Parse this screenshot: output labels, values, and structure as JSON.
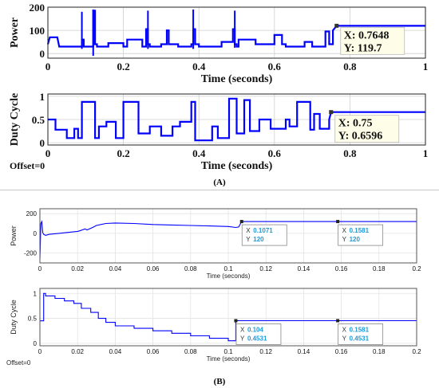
{
  "figure": {
    "panel_a_label": "(A)",
    "panel_b_label": "(B)"
  },
  "chart_data": [
    {
      "panel": "A",
      "type": "line",
      "ylabel": "Power",
      "xlabel": "Time (seconds)",
      "xlim": [
        0,
        1
      ],
      "ylim": [
        -20,
        200
      ],
      "xticks": [
        "0",
        "0.2",
        "0.4",
        "0.6",
        "0.8",
        "1"
      ],
      "yticks": [
        "0",
        "100",
        "200"
      ],
      "grid": true,
      "line_color": "#0000ff",
      "series": [
        {
          "x": [
            0,
            0.005,
            0.025,
            0.03,
            0.085,
            0.09,
            0.09,
            0.095,
            0.095,
            0.12,
            0.12,
            0.125,
            0.125,
            0.13,
            0.13,
            0.16,
            0.16,
            0.2,
            0.2,
            0.21,
            0.21,
            0.25,
            0.25,
            0.26,
            0.26,
            0.265,
            0.265,
            0.27,
            0.27,
            0.3,
            0.3,
            0.315,
            0.315,
            0.32,
            0.32,
            0.345,
            0.345,
            0.38,
            0.38,
            0.385,
            0.385,
            0.39,
            0.39,
            0.4,
            0.4,
            0.46,
            0.46,
            0.49,
            0.49,
            0.495,
            0.495,
            0.5,
            0.5,
            0.505,
            0.505,
            0.55,
            0.55,
            0.6,
            0.6,
            0.62,
            0.62,
            0.63,
            0.63,
            0.68,
            0.68,
            0.7,
            0.7,
            0.735,
            0.735,
            0.745,
            0.745,
            0.755,
            0.755,
            0.765,
            1.0
          ],
          "y": [
            40,
            70,
            70,
            30,
            30,
            30,
            60,
            60,
            30,
            30,
            185,
            185,
            40,
            40,
            30,
            30,
            45,
            45,
            30,
            30,
            60,
            60,
            30,
            30,
            105,
            105,
            40,
            40,
            30,
            30,
            40,
            40,
            100,
            100,
            40,
            40,
            30,
            30,
            40,
            40,
            105,
            105,
            40,
            40,
            30,
            30,
            50,
            50,
            105,
            105,
            40,
            40,
            30,
            30,
            60,
            60,
            40,
            40,
            80,
            80,
            40,
            40,
            30,
            30,
            50,
            50,
            30,
            30,
            95,
            95,
            40,
            40,
            100,
            119.7,
            119.7
          ]
        }
      ],
      "spikes": [
        {
          "x": 0.09,
          "y0": 20,
          "y1": 180
        },
        {
          "x": 0.12,
          "y0": -10,
          "y1": 190
        },
        {
          "x": 0.265,
          "y0": 20,
          "y1": 185
        },
        {
          "x": 0.385,
          "y0": 20,
          "y1": 190
        },
        {
          "x": 0.495,
          "y0": 25,
          "y1": 185
        }
      ],
      "datatip": {
        "x": 0.7648,
        "y": 119.7,
        "x_text": "X: 0.7648",
        "y_text": "Y: 119.7"
      }
    },
    {
      "panel": "A",
      "type": "line",
      "ylabel": "Duty Cycle",
      "xlabel": "Time (seconds)",
      "offset_text": "Offset=0",
      "xlim": [
        0,
        1
      ],
      "ylim": [
        -0.05,
        1.05
      ],
      "xticks": [
        "0",
        "0.2",
        "0.4",
        "0.6",
        "0.8",
        "1"
      ],
      "yticks": [
        "0",
        "0.5",
        "1"
      ],
      "grid": true,
      "line_color": "#0000ff",
      "series": [
        {
          "x": [
            0,
            0.02,
            0.02,
            0.05,
            0.05,
            0.07,
            0.07,
            0.08,
            0.08,
            0.09,
            0.09,
            0.125,
            0.125,
            0.135,
            0.135,
            0.155,
            0.155,
            0.18,
            0.18,
            0.2,
            0.2,
            0.24,
            0.24,
            0.27,
            0.27,
            0.3,
            0.3,
            0.33,
            0.33,
            0.35,
            0.35,
            0.38,
            0.38,
            0.39,
            0.39,
            0.435,
            0.435,
            0.45,
            0.45,
            0.48,
            0.48,
            0.5,
            0.5,
            0.52,
            0.52,
            0.535,
            0.535,
            0.56,
            0.56,
            0.59,
            0.59,
            0.63,
            0.63,
            0.64,
            0.64,
            0.66,
            0.66,
            0.695,
            0.695,
            0.705,
            0.705,
            0.72,
            0.72,
            0.745,
            0.745,
            0.75,
            1.0
          ],
          "y": [
            0.5,
            0.5,
            0.28,
            0.28,
            0.1,
            0.1,
            0.3,
            0.3,
            0.1,
            0.1,
            0.88,
            0.88,
            0.1,
            0.1,
            0.35,
            0.35,
            0.45,
            0.45,
            0.1,
            0.1,
            0.88,
            0.88,
            0.2,
            0.2,
            0.35,
            0.35,
            0.15,
            0.15,
            0.35,
            0.35,
            0.45,
            0.45,
            0.88,
            0.88,
            0.05,
            0.05,
            0.35,
            0.35,
            0.1,
            0.1,
            0.95,
            0.95,
            0.2,
            0.2,
            0.92,
            0.92,
            0.25,
            0.25,
            0.5,
            0.5,
            0.3,
            0.3,
            0.5,
            0.5,
            0.35,
            0.35,
            0.88,
            0.88,
            0.28,
            0.28,
            0.62,
            0.62,
            0.3,
            0.3,
            0.5,
            0.6596,
            0.6596
          ]
        }
      ],
      "datatip": {
        "x": 0.75,
        "y": 0.6596,
        "x_text": "X: 0.75",
        "y_text": "Y: 0.6596"
      }
    },
    {
      "panel": "B",
      "type": "line",
      "ylabel": "Power",
      "xlabel": "Time (seconds)",
      "xlim": [
        0,
        0.2
      ],
      "ylim": [
        -300,
        250
      ],
      "xticks": [
        "0",
        "0.02",
        "0.04",
        "0.06",
        "0.08",
        "0.1",
        "0.12",
        "0.14",
        "0.16",
        "0.18",
        "0.2"
      ],
      "yticks": [
        "-200",
        "0",
        "200"
      ],
      "grid": true,
      "line_color": "#0000ff",
      "series": [
        {
          "x": [
            0,
            0.0005,
            0.001,
            0.0015,
            0.002,
            0.003,
            0.005,
            0.01,
            0.015,
            0.02,
            0.021,
            0.024,
            0.025,
            0.028,
            0.03,
            0.035,
            0.04,
            0.05,
            0.06,
            0.07,
            0.08,
            0.09,
            0.1,
            0.104,
            0.1055,
            0.1071,
            0.13,
            0.1581,
            0.2
          ],
          "y": [
            -260,
            100,
            120,
            10,
            -10,
            -20,
            -10,
            0,
            10,
            20,
            25,
            45,
            35,
            60,
            80,
            100,
            105,
            100,
            90,
            85,
            80,
            75,
            70,
            60,
            65,
            120,
            120,
            120,
            120
          ]
        }
      ],
      "datatips": [
        {
          "x": 0.1071,
          "y": 120,
          "x_text": "X",
          "x_val": "0.1071",
          "y_text": "Y",
          "y_val": "120"
        },
        {
          "x": 0.1581,
          "y": 120,
          "x_text": "X",
          "x_val": "0.1581",
          "y_text": "Y",
          "y_val": "120"
        }
      ]
    },
    {
      "panel": "B",
      "type": "line",
      "ylabel": "Duty Cycle",
      "xlabel": "Time (seconds)",
      "offset_text": "Offset=0",
      "xlim": [
        0,
        0.2
      ],
      "ylim": [
        -0.05,
        1.1
      ],
      "xticks": [
        "0",
        "0.02",
        "0.04",
        "0.06",
        "0.08",
        "0.1",
        "0.12",
        "0.14",
        "0.16",
        "0.18",
        "0.2"
      ],
      "yticks": [
        "0",
        "0.5",
        "1"
      ],
      "grid": true,
      "line_color": "#0000ff",
      "series": [
        {
          "x": [
            0,
            0.002,
            0.002,
            0.003,
            0.003,
            0.008,
            0.008,
            0.013,
            0.013,
            0.018,
            0.018,
            0.022,
            0.022,
            0.027,
            0.027,
            0.031,
            0.031,
            0.035,
            0.035,
            0.04,
            0.04,
            0.05,
            0.05,
            0.06,
            0.06,
            0.07,
            0.07,
            0.08,
            0.08,
            0.09,
            0.09,
            0.1,
            0.1,
            0.104,
            0.104,
            0.2
          ],
          "y": [
            0.45,
            0.45,
            1.0,
            1.0,
            0.95,
            0.95,
            0.9,
            0.9,
            0.85,
            0.85,
            0.8,
            0.8,
            0.7,
            0.7,
            0.62,
            0.62,
            0.5,
            0.5,
            0.42,
            0.42,
            0.35,
            0.35,
            0.3,
            0.3,
            0.25,
            0.25,
            0.2,
            0.2,
            0.15,
            0.15,
            0.1,
            0.1,
            0.05,
            0.05,
            0.4531,
            0.4531
          ]
        }
      ],
      "datatips": [
        {
          "x": 0.104,
          "y": 0.4531,
          "x_text": "X",
          "x_val": "0.104",
          "y_text": "Y",
          "y_val": "0.4531"
        },
        {
          "x": 0.1581,
          "y": 0.4531,
          "x_text": "X",
          "x_val": "0.1581",
          "y_text": "Y",
          "y_val": "0.4531"
        }
      ]
    }
  ]
}
